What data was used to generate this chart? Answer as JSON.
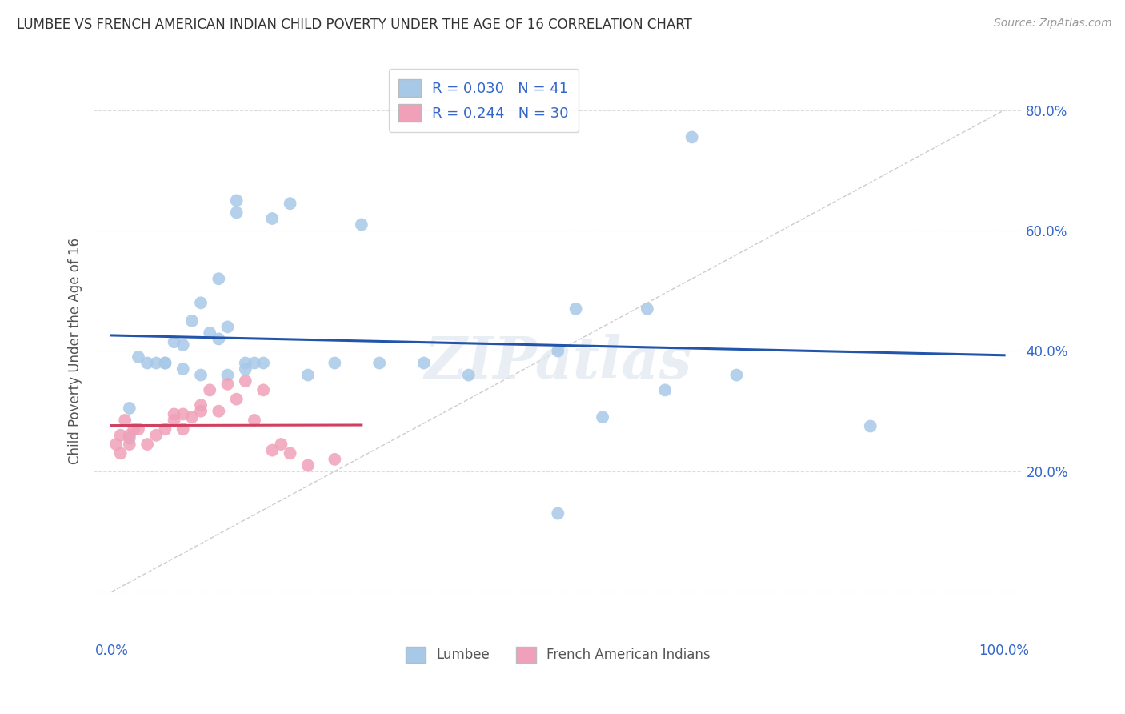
{
  "title": "LUMBEE VS FRENCH AMERICAN INDIAN CHILD POVERTY UNDER THE AGE OF 16 CORRELATION CHART",
  "source": "Source: ZipAtlas.com",
  "ylabel": "Child Poverty Under the Age of 16",
  "xlim": [
    -0.02,
    1.02
  ],
  "ylim": [
    -0.08,
    0.88
  ],
  "x_ticks": [
    0.0,
    0.2,
    0.4,
    0.6,
    0.8,
    1.0
  ],
  "x_tick_labels": [
    "0.0%",
    "",
    "",
    "",
    "",
    "100.0%"
  ],
  "y_ticks": [
    0.0,
    0.2,
    0.4,
    0.6,
    0.8
  ],
  "y_tick_labels": [
    "",
    "20.0%",
    "40.0%",
    "60.0%",
    "80.0%"
  ],
  "lumbee_R": "0.030",
  "lumbee_N": "41",
  "french_R": "0.244",
  "french_N": "30",
  "lumbee_color": "#a8c8e8",
  "lumbee_line_color": "#2255aa",
  "french_color": "#f0a0b8",
  "french_line_color": "#d04060",
  "ref_line_color": "#cccccc",
  "lumbee_x": [
    0.005,
    0.01,
    0.015,
    0.02,
    0.02,
    0.03,
    0.03,
    0.04,
    0.04,
    0.05,
    0.06,
    0.07,
    0.08,
    0.08,
    0.09,
    0.1,
    0.1,
    0.11,
    0.12,
    0.13,
    0.14,
    0.14,
    0.15,
    0.16,
    0.18,
    0.2,
    0.22,
    0.25,
    0.28,
    0.3,
    0.35,
    0.4,
    0.5,
    0.52,
    0.55,
    0.6,
    0.62,
    0.65,
    0.7,
    0.85,
    0.5
  ],
  "lumbee_y": [
    0.255,
    0.285,
    0.265,
    0.305,
    0.255,
    0.39,
    0.37,
    0.38,
    0.37,
    0.38,
    0.38,
    0.415,
    0.41,
    0.38,
    0.45,
    0.48,
    0.435,
    0.52,
    0.42,
    0.44,
    0.65,
    0.63,
    0.38,
    0.37,
    0.38,
    0.62,
    0.645,
    0.36,
    0.38,
    0.61,
    0.38,
    0.36,
    0.4,
    0.47,
    0.29,
    0.47,
    0.335,
    0.755,
    0.36,
    0.275,
    0.13
  ],
  "french_x": [
    0.005,
    0.01,
    0.01,
    0.015,
    0.02,
    0.02,
    0.03,
    0.04,
    0.05,
    0.06,
    0.07,
    0.07,
    0.08,
    0.08,
    0.09,
    0.1,
    0.1,
    0.11,
    0.12,
    0.13,
    0.14,
    0.15,
    0.16,
    0.17,
    0.18,
    0.19,
    0.2,
    0.22,
    0.25,
    0.28
  ],
  "french_y": [
    0.245,
    0.26,
    0.23,
    0.285,
    0.245,
    0.26,
    0.27,
    0.245,
    0.26,
    0.27,
    0.285,
    0.295,
    0.27,
    0.295,
    0.29,
    0.31,
    0.3,
    0.335,
    0.3,
    0.345,
    0.32,
    0.35,
    0.285,
    0.335,
    0.235,
    0.245,
    0.23,
    0.21,
    0.225,
    0.22
  ],
  "background_color": "#ffffff",
  "grid_color": "#dddddd",
  "title_color": "#333333",
  "axis_label_color": "#555555",
  "tick_color": "#3366cc",
  "watermark": "ZIPatlas"
}
